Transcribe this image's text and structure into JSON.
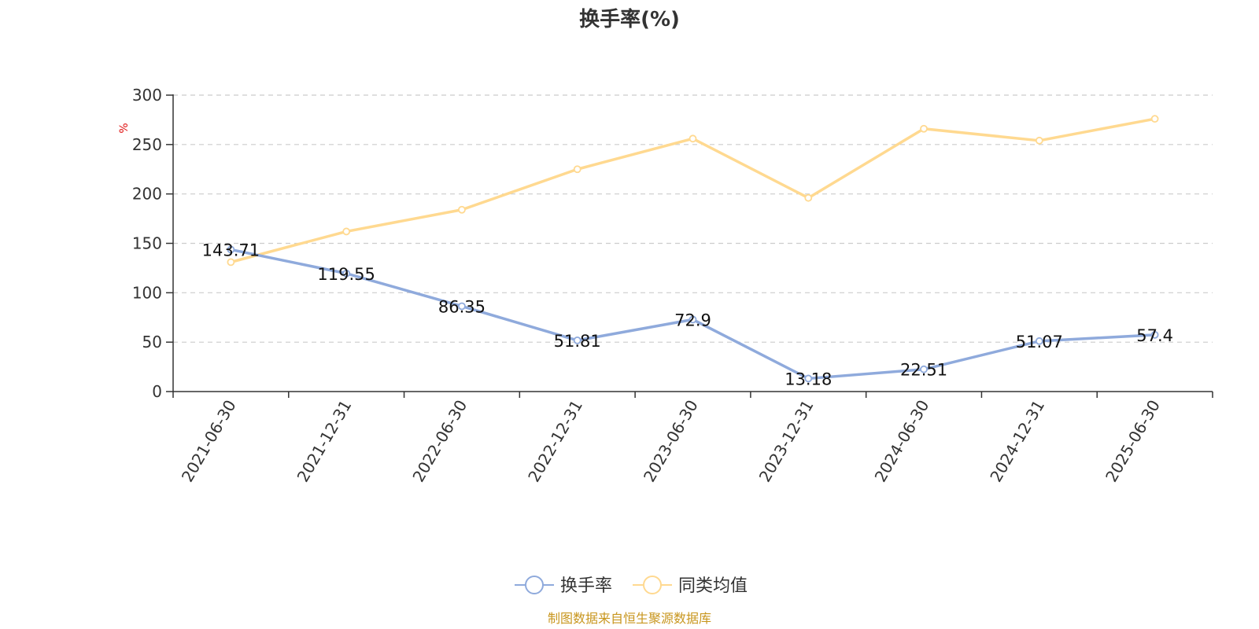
{
  "chart_data": {
    "type": "line",
    "title": "换手率(%)",
    "ylabel": "%",
    "xlabel": "",
    "ylim": [
      0,
      300
    ],
    "yticks": [
      0,
      50,
      100,
      150,
      200,
      250,
      300
    ],
    "grid": true,
    "legend_position": "bottom-center",
    "categories": [
      "2021-06-30",
      "2021-12-31",
      "2022-06-30",
      "2022-12-31",
      "2023-06-30",
      "2023-12-31",
      "2024-06-30",
      "2024-12-31",
      "2025-06-30"
    ],
    "series": [
      {
        "name": "换手率",
        "color": "#8faadc",
        "values": [
          143.71,
          119.55,
          86.35,
          51.81,
          72.9,
          13.18,
          22.51,
          51.07,
          57.4
        ],
        "show_labels": true
      },
      {
        "name": "同类均值",
        "color": "#ffd990",
        "values": [
          131,
          162,
          184,
          225,
          256,
          196,
          266,
          254,
          276
        ],
        "show_labels": false
      }
    ]
  },
  "source": "制图数据来自恒生聚源数据库"
}
